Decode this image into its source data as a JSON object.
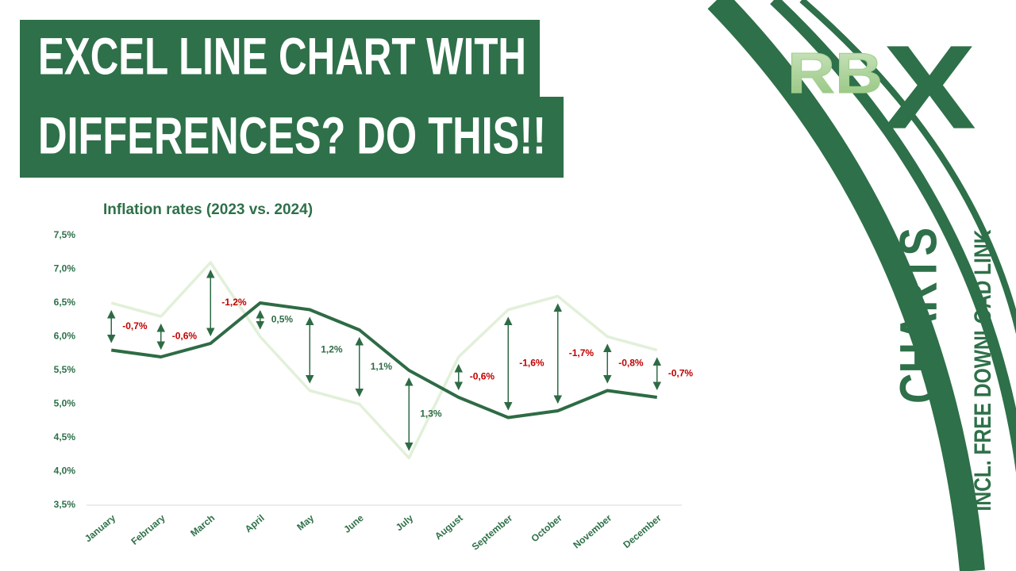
{
  "header": {
    "lines": [
      "EXCEL LINE CHART WITH",
      "DIFFERENCES? DO THIS!!"
    ]
  },
  "logo": {
    "left": "RB",
    "right": "X"
  },
  "side": {
    "title": "CHARTS",
    "subtitle": "INCL. FREE DOWNLOAD LINK"
  },
  "chart_data": {
    "type": "line",
    "title": "Inflation rates (2023 vs. 2024)",
    "categories": [
      "January",
      "February",
      "March",
      "April",
      "May",
      "June",
      "July",
      "August",
      "September",
      "October",
      "November",
      "December"
    ],
    "series": [
      {
        "color": "#e2f0d9",
        "values": [
          6.5,
          6.3,
          7.1,
          6.0,
          5.2,
          5.0,
          4.2,
          5.7,
          6.4,
          6.6,
          6.0,
          5.8
        ]
      },
      {
        "color": "#2e6b45",
        "values": [
          5.8,
          5.7,
          5.9,
          6.5,
          6.4,
          6.1,
          5.5,
          5.1,
          4.8,
          4.9,
          5.2,
          5.1
        ]
      }
    ],
    "differences": {
      "values": [
        -0.7,
        -0.6,
        -1.2,
        0.5,
        1.2,
        1.1,
        1.3,
        -0.6,
        -1.6,
        -1.7,
        -0.8,
        -0.7
      ],
      "value_labels": [
        "-0,7%",
        "-0,6%",
        "-1,2%",
        "0,5%",
        "1,2%",
        "1,1%",
        "1,3%",
        "-0,6%",
        "-1,6%",
        "-1,7%",
        "-0,8%",
        "-0,7%"
      ],
      "negative_color": "#c00000",
      "positive_color": "#2e6b45"
    },
    "ylim": [
      3.5,
      7.5
    ],
    "yticks": [
      {
        "value": 3.5,
        "label": "3,5%"
      },
      {
        "value": 4.0,
        "label": "4,0%"
      },
      {
        "value": 4.5,
        "label": "4,5%"
      },
      {
        "value": 5.0,
        "label": "5,0%"
      },
      {
        "value": 5.5,
        "label": "5,5%"
      },
      {
        "value": 6.0,
        "label": "6,0%"
      },
      {
        "value": 6.5,
        "label": "6,5%"
      },
      {
        "value": 7.0,
        "label": "7,0%"
      },
      {
        "value": 7.5,
        "label": "7,5%"
      }
    ],
    "grid": false
  }
}
